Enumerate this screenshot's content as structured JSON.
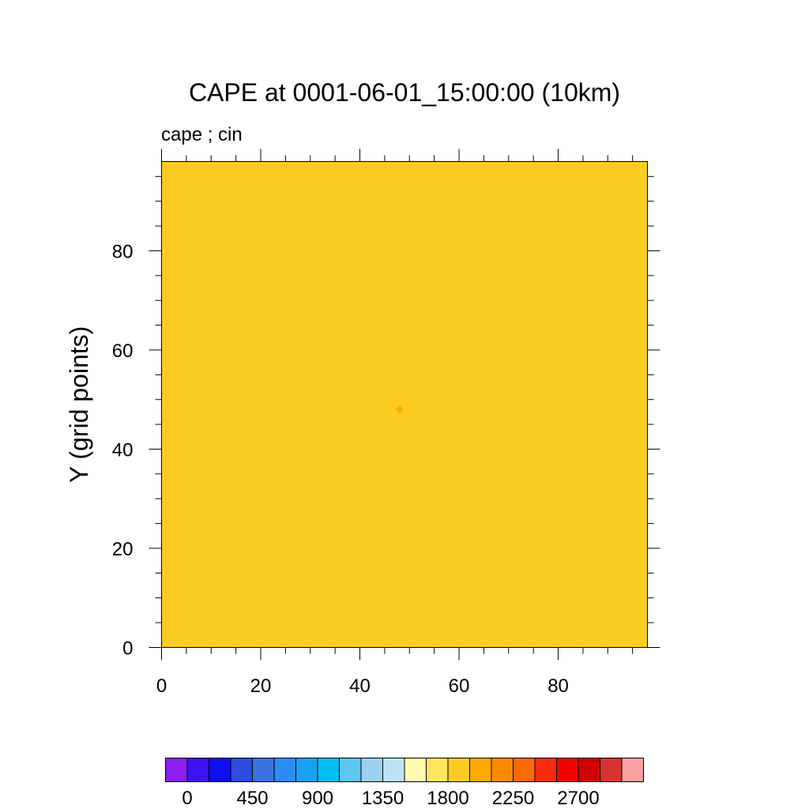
{
  "chart_data": {
    "type": "heatmap",
    "title": "CAPE at 0001-06-01_15:00:00 (10km)",
    "subtitle": "cape ; cin",
    "xlabel": "",
    "ylabel": "Y (grid points)",
    "xlim": [
      0,
      98
    ],
    "ylim": [
      0,
      98
    ],
    "x_ticks": [
      0,
      20,
      40,
      60,
      80
    ],
    "y_ticks": [
      0,
      20,
      40,
      60,
      80
    ],
    "x_minor_step": 5,
    "y_minor_step": 5,
    "field_value_level": "1800-2025",
    "field_color": "#fdcc22",
    "anomaly": {
      "x": 48,
      "y": 48,
      "color": "#fda900"
    },
    "colorbar": {
      "colors": [
        "#8a1ff0",
        "#3e10f5",
        "#0e0ef2",
        "#2e4ddf",
        "#3a72e2",
        "#2b8bf7",
        "#1aa1f5",
        "#00bff5",
        "#5dc6f2",
        "#9dd1ee",
        "#bde4f4",
        "#fffbb0",
        "#fde55d",
        "#fdcc22",
        "#fda900",
        "#fc8a00",
        "#fb6a05",
        "#f82d0c",
        "#f50000",
        "#d10000",
        "#d93232",
        "#f9a0a0"
      ],
      "labels": [
        "0",
        "450",
        "900",
        "1350",
        "1800",
        "2250",
        "2700"
      ],
      "label_boundary_index": [
        1,
        4,
        7,
        10,
        13,
        16,
        19
      ]
    }
  }
}
